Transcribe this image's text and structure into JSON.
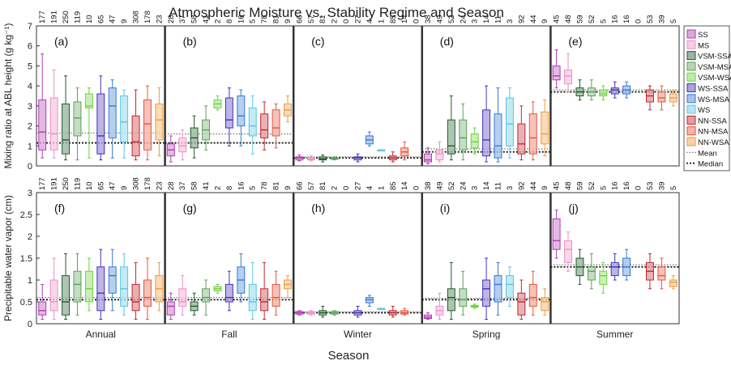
{
  "title": "Atmospheric Moisture vs. Stability Regime and Season",
  "xlabel": "Season",
  "legend": {
    "placement": "right",
    "regimes": [
      {
        "label": "SS",
        "color": "#b23bb3"
      },
      {
        "label": "MS",
        "color": "#ef8fc6"
      },
      {
        "label": "VSM-SSA",
        "color": "#1f5c2a"
      },
      {
        "label": "VSM-MSA",
        "color": "#5f9f5b"
      },
      {
        "label": "VSM-WSA",
        "color": "#6cd33d"
      },
      {
        "label": "WS-SSA",
        "color": "#4533b8"
      },
      {
        "label": "WS-MSA",
        "color": "#3579d3"
      },
      {
        "label": "WS",
        "color": "#59c6e5"
      },
      {
        "label": "NN-SSA",
        "color": "#c3262d"
      },
      {
        "label": "NN-MSA",
        "color": "#e6553e"
      },
      {
        "label": "NN-WSA",
        "color": "#ee9a3e"
      }
    ],
    "lines": [
      {
        "label": "Mean",
        "style": "dotted-thin"
      },
      {
        "label": "Median",
        "style": "dotted-thick"
      }
    ]
  },
  "chart_data": [
    {
      "type": "box",
      "panel": "top",
      "ylabel": "Mixing ratio at ABL height (g kg⁻¹)",
      "ylim": [
        0,
        7
      ],
      "yticks": [
        0,
        1,
        2,
        3,
        4,
        5,
        6,
        7
      ],
      "seasons": [
        "Annual",
        "Fall",
        "Winter",
        "Spring",
        "Summer"
      ],
      "panel_letters": [
        "(a)",
        "(b)",
        "(c)",
        "(d)",
        "(e)"
      ],
      "counts": [
        [
          177,
          191,
          250,
          119,
          10,
          65,
          47,
          9,
          308,
          178,
          23
        ],
        [
          28,
          37,
          58,
          41,
          2,
          8,
          16,
          5,
          78,
          81,
          9
        ],
        [
          66,
          57,
          81,
          2,
          0,
          27,
          4,
          1,
          85,
          14,
          0
        ],
        [
          38,
          49,
          52,
          24,
          3,
          14,
          11,
          3,
          92,
          44,
          9
        ],
        [
          45,
          48,
          59,
          52,
          5,
          16,
          16,
          0,
          53,
          39,
          5
        ]
      ],
      "mean_line": [
        1.65,
        1.6,
        0.45,
        0.85,
        3.8
      ],
      "median_line": [
        1.15,
        1.15,
        0.4,
        0.7,
        3.7
      ],
      "boxes": [
        [
          [
            0.4,
            0.8,
            1.7,
            3.3,
            5.6
          ],
          [
            0.4,
            0.8,
            1.6,
            3.4,
            4.8
          ],
          [
            0.3,
            0.6,
            1.3,
            3.1,
            4.5
          ],
          [
            0.3,
            1.5,
            2.4,
            3.2,
            3.9
          ],
          [
            0.4,
            2.9,
            3.0,
            3.6,
            3.9
          ],
          [
            0.3,
            0.6,
            1.5,
            3.6,
            4.5
          ],
          [
            0.4,
            1.4,
            3.0,
            3.9,
            4.3
          ],
          [
            0.4,
            1.2,
            2.2,
            3.5,
            3.8
          ],
          [
            0.3,
            0.5,
            1.2,
            2.5,
            3.8
          ],
          [
            0.3,
            0.8,
            2.1,
            3.3,
            4.0
          ],
          [
            0.5,
            1.3,
            2.3,
            3.1,
            3.9
          ]
        ],
        [
          [
            0.2,
            0.5,
            0.8,
            1.1,
            1.5
          ],
          [
            0.3,
            0.7,
            1.0,
            1.4,
            1.8
          ],
          [
            0.4,
            0.9,
            1.4,
            1.9,
            2.5
          ],
          [
            0.8,
            1.3,
            1.8,
            2.3,
            3.0
          ],
          [
            2.8,
            2.9,
            3.1,
            3.3,
            3.5
          ],
          [
            1.0,
            1.9,
            2.3,
            3.4,
            3.9
          ],
          [
            1.0,
            2.0,
            2.5,
            3.5,
            3.8
          ],
          [
            0.6,
            1.5,
            2.0,
            2.9,
            3.5
          ],
          [
            0.8,
            1.4,
            1.8,
            2.6,
            3.2
          ],
          [
            0.9,
            1.5,
            1.9,
            2.8,
            3.1
          ],
          [
            2.2,
            2.5,
            2.8,
            3.1,
            3.5
          ]
        ],
        [
          [
            0.25,
            0.3,
            0.4,
            0.45,
            0.55
          ],
          [
            0.25,
            0.3,
            0.35,
            0.42,
            0.5
          ],
          [
            0.2,
            0.3,
            0.35,
            0.45,
            0.55
          ],
          [
            0.3,
            0.33,
            0.36,
            0.4,
            0.45
          ],
          null,
          [
            0.2,
            0.3,
            0.4,
            0.45,
            0.6
          ],
          [
            1.0,
            1.1,
            1.3,
            1.5,
            1.7
          ],
          [
            0.8,
            0.8,
            0.8,
            0.8,
            0.8
          ],
          [
            0.2,
            0.3,
            0.4,
            0.5,
            0.7
          ],
          [
            0.3,
            0.5,
            0.7,
            0.9,
            1.2
          ],
          null
        ],
        [
          [
            0.1,
            0.2,
            0.3,
            0.6,
            0.9
          ],
          [
            0.2,
            0.3,
            0.6,
            0.8,
            1.2
          ],
          [
            0.3,
            0.6,
            1.0,
            2.3,
            3.5
          ],
          [
            0.3,
            0.8,
            1.4,
            2.3,
            3.1
          ],
          [
            0.6,
            0.9,
            1.2,
            1.6,
            1.9
          ],
          [
            0.2,
            0.5,
            1.3,
            2.8,
            4.0
          ],
          [
            0.2,
            0.4,
            1.0,
            2.6,
            3.9
          ],
          [
            0.4,
            1.0,
            2.1,
            3.4,
            3.9
          ],
          [
            0.3,
            0.6,
            1.1,
            2.1,
            3.0
          ],
          [
            0.3,
            0.6,
            1.4,
            2.6,
            3.2
          ],
          [
            0.5,
            1.1,
            1.6,
            2.7,
            3.3
          ]
        ],
        [
          [
            3.9,
            4.3,
            4.5,
            5.0,
            5.8
          ],
          [
            3.7,
            4.1,
            4.5,
            4.8,
            5.6
          ],
          [
            3.3,
            3.5,
            3.7,
            3.9,
            4.3
          ],
          [
            3.3,
            3.5,
            3.7,
            3.9,
            4.3
          ],
          [
            3.3,
            3.5,
            3.6,
            3.8,
            4.0
          ],
          [
            3.4,
            3.6,
            3.8,
            3.9,
            4.2
          ],
          [
            3.4,
            3.6,
            3.8,
            4.0,
            4.2
          ],
          null,
          [
            2.8,
            3.2,
            3.5,
            3.8,
            4.0
          ],
          [
            2.8,
            3.2,
            3.4,
            3.7,
            4.0
          ],
          [
            3.0,
            3.2,
            3.4,
            3.6,
            3.8
          ]
        ]
      ]
    },
    {
      "type": "box",
      "panel": "bottom",
      "ylabel": "Precipitable water vapor (cm)",
      "ylim": [
        0,
        3
      ],
      "yticks": [
        0,
        0.5,
        1,
        1.5,
        2,
        2.5,
        3
      ],
      "seasons": [
        "Annual",
        "Fall",
        "Winter",
        "Spring",
        "Summer"
      ],
      "panel_letters": [
        "(f)",
        "(g)",
        "(h)",
        "(i)",
        "(j)"
      ],
      "counts": [
        [
          177,
          191,
          250,
          119,
          10,
          65,
          47,
          9,
          308,
          178,
          23
        ],
        [
          28,
          37,
          58,
          41,
          2,
          8,
          16,
          5,
          78,
          81,
          9
        ],
        [
          66,
          57,
          81,
          2,
          0,
          27,
          4,
          1,
          85,
          14,
          0
        ],
        [
          38,
          49,
          52,
          24,
          3,
          14,
          11,
          3,
          92,
          44,
          9
        ],
        [
          45,
          48,
          59,
          52,
          5,
          16,
          16,
          0,
          53,
          39,
          5
        ]
      ],
      "mean_line": [
        0.6,
        0.6,
        0.27,
        0.58,
        1.35
      ],
      "median_line": [
        0.55,
        0.55,
        0.25,
        0.55,
        1.3
      ],
      "boxes": [
        [
          [
            0.1,
            0.2,
            0.3,
            0.5,
            0.9
          ],
          [
            0.1,
            0.3,
            0.5,
            1.0,
            1.5
          ],
          [
            0.1,
            0.2,
            0.5,
            1.1,
            1.6
          ],
          [
            0.2,
            0.5,
            0.9,
            1.2,
            1.6
          ],
          [
            0.3,
            0.5,
            0.8,
            1.2,
            1.5
          ],
          [
            0.1,
            0.3,
            0.7,
            1.3,
            1.7
          ],
          [
            0.3,
            0.7,
            1.1,
            1.3,
            1.7
          ],
          [
            0.2,
            0.4,
            0.8,
            1.3,
            1.6
          ],
          [
            0.1,
            0.3,
            0.5,
            0.9,
            1.4
          ],
          [
            0.1,
            0.4,
            0.6,
            1.0,
            1.5
          ],
          [
            0.3,
            0.5,
            0.8,
            1.1,
            1.4
          ]
        ],
        [
          [
            0.1,
            0.2,
            0.4,
            0.5,
            0.7
          ],
          [
            0.2,
            0.4,
            0.5,
            0.8,
            1.1
          ],
          [
            0.2,
            0.3,
            0.4,
            0.5,
            0.7
          ],
          [
            0.2,
            0.5,
            0.6,
            0.8,
            1.0
          ],
          [
            0.7,
            0.75,
            0.8,
            0.85,
            0.9
          ],
          [
            0.3,
            0.5,
            0.6,
            0.9,
            1.2
          ],
          [
            0.5,
            0.7,
            1.0,
            1.3,
            1.6
          ],
          [
            0.1,
            0.3,
            0.5,
            0.9,
            1.4
          ],
          [
            0.1,
            0.3,
            0.5,
            0.8,
            1.4
          ],
          [
            0.2,
            0.4,
            0.6,
            0.9,
            1.2
          ],
          [
            0.6,
            0.8,
            0.9,
            1.0,
            1.1
          ]
        ],
        [
          [
            0.2,
            0.22,
            0.25,
            0.28,
            0.3
          ],
          [
            0.2,
            0.22,
            0.25,
            0.28,
            0.3
          ],
          [
            0.15,
            0.2,
            0.25,
            0.3,
            0.4
          ],
          [
            0.2,
            0.22,
            0.25,
            0.28,
            0.3
          ],
          null,
          [
            0.15,
            0.2,
            0.25,
            0.3,
            0.4
          ],
          [
            0.4,
            0.48,
            0.55,
            0.6,
            0.65
          ],
          [
            0.35,
            0.35,
            0.35,
            0.35,
            0.35
          ],
          [
            0.15,
            0.2,
            0.25,
            0.3,
            0.4
          ],
          [
            0.2,
            0.22,
            0.25,
            0.3,
            0.35
          ],
          null
        ],
        [
          [
            0.1,
            0.12,
            0.15,
            0.2,
            0.25
          ],
          [
            0.1,
            0.2,
            0.3,
            0.4,
            0.7
          ],
          [
            0.1,
            0.3,
            0.6,
            0.8,
            1.4
          ],
          [
            0.2,
            0.4,
            0.55,
            0.8,
            1.2
          ],
          [
            0.35,
            0.38,
            0.4,
            0.42,
            0.45
          ],
          [
            0.1,
            0.4,
            0.8,
            1.0,
            1.5
          ],
          [
            0.2,
            0.5,
            0.9,
            1.1,
            1.4
          ],
          [
            0.4,
            0.6,
            0.9,
            1.1,
            1.3
          ],
          [
            0.1,
            0.2,
            0.5,
            0.7,
            1.0
          ],
          [
            0.2,
            0.4,
            0.6,
            0.9,
            1.2
          ],
          [
            0.2,
            0.3,
            0.5,
            0.6,
            0.8
          ]
        ],
        [
          [
            1.5,
            1.7,
            1.9,
            2.4,
            2.6
          ],
          [
            1.2,
            1.4,
            1.7,
            1.9,
            2.1
          ],
          [
            0.9,
            1.1,
            1.3,
            1.5,
            1.7
          ],
          [
            0.8,
            1.0,
            1.2,
            1.3,
            1.6
          ],
          [
            0.7,
            0.9,
            1.1,
            1.2,
            1.4
          ],
          [
            1.0,
            1.1,
            1.3,
            1.4,
            1.6
          ],
          [
            1.0,
            1.1,
            1.3,
            1.5,
            1.7
          ],
          null,
          [
            0.8,
            1.0,
            1.2,
            1.4,
            1.6
          ],
          [
            0.8,
            1.0,
            1.1,
            1.3,
            1.5
          ],
          [
            0.8,
            0.85,
            0.95,
            1.0,
            1.1
          ]
        ]
      ]
    }
  ]
}
